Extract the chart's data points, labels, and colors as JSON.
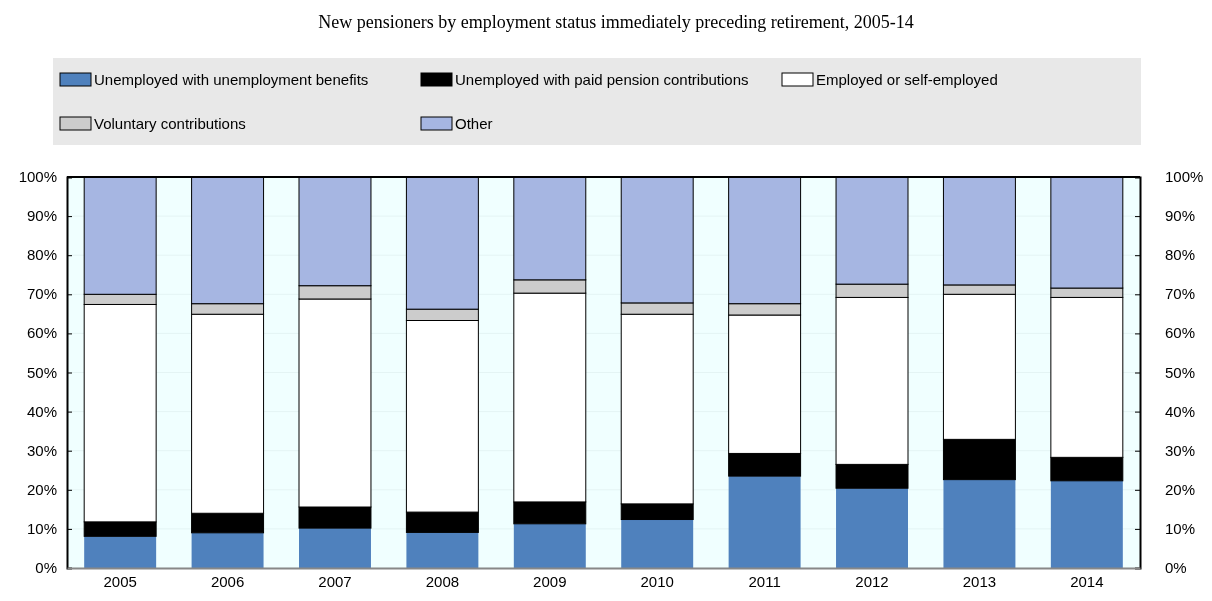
{
  "chart_data": {
    "type": "bar",
    "stacked": true,
    "title": "New pensioners by employment status immediately preceding retirement, 2005-14",
    "categories": [
      "2005",
      "2006",
      "2007",
      "2008",
      "2009",
      "2010",
      "2011",
      "2012",
      "2013",
      "2014"
    ],
    "series": [
      {
        "name": "Unemployed with unemployment benefits",
        "color": "#4f81bd",
        "values": [
          8.1,
          9.0,
          10.2,
          9.1,
          11.3,
          12.4,
          23.5,
          20.4,
          22.6,
          22.3
        ]
      },
      {
        "name": "Unemployed with paid pension contributions",
        "color": "#000000",
        "values": [
          3.7,
          5.0,
          5.4,
          5.2,
          5.6,
          4.0,
          5.8,
          6.1,
          10.3,
          6.0
        ]
      },
      {
        "name": "Employed or self-employed",
        "color": "#ffffff",
        "values": [
          55.6,
          50.9,
          53.2,
          49.0,
          53.4,
          48.5,
          35.4,
          42.7,
          37.1,
          40.9
        ]
      },
      {
        "name": "Voluntary contributions",
        "color": "#cccccc",
        "values": [
          2.6,
          2.7,
          3.4,
          2.9,
          3.4,
          2.9,
          2.9,
          3.4,
          2.4,
          2.4
        ]
      },
      {
        "name": "Other",
        "color": "#a6b6e2",
        "values": [
          30.0,
          32.4,
          27.8,
          33.8,
          26.3,
          32.2,
          32.4,
          27.4,
          27.6,
          28.4
        ]
      }
    ],
    "ylim": [
      0,
      100
    ],
    "yticks": [
      {
        "value": 0,
        "label": "0%"
      },
      {
        "value": 10,
        "label": "10%"
      },
      {
        "value": 20,
        "label": "20%"
      },
      {
        "value": 30,
        "label": "30%"
      },
      {
        "value": 40,
        "label": "40%"
      },
      {
        "value": 50,
        "label": "50%"
      },
      {
        "value": 60,
        "label": "60%"
      },
      {
        "value": 70,
        "label": "70%"
      },
      {
        "value": 80,
        "label": "80%"
      },
      {
        "value": 90,
        "label": "90%"
      },
      {
        "value": 100,
        "label": "100%"
      }
    ],
    "y2lim": [
      0,
      100
    ],
    "y2ticks": [
      {
        "value": 0,
        "label": "0%"
      },
      {
        "value": 10,
        "label": "10%"
      },
      {
        "value": 20,
        "label": "20%"
      },
      {
        "value": 30,
        "label": "30%"
      },
      {
        "value": 40,
        "label": "40%"
      },
      {
        "value": 50,
        "label": "50%"
      },
      {
        "value": 60,
        "label": "60%"
      },
      {
        "value": 70,
        "label": "70%"
      },
      {
        "value": 80,
        "label": "80%"
      },
      {
        "value": 90,
        "label": "90%"
      },
      {
        "value": 100,
        "label": "100%"
      }
    ],
    "grid": "y",
    "legend": "top"
  }
}
